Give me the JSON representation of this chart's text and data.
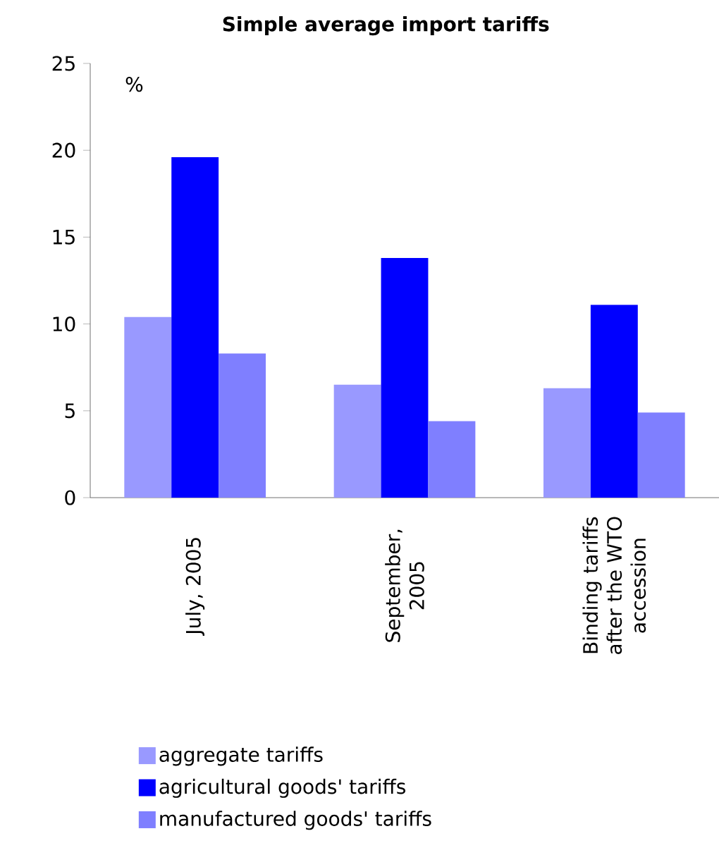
{
  "chart_data": {
    "type": "bar",
    "title": "Simple average import tariffs",
    "ylabel": "%",
    "categories": [
      "July, 2005",
      "September, 2005",
      "Binding tariffs after the WTO accession"
    ],
    "series": [
      {
        "name": "aggregate tariffs",
        "color": "#9999ff",
        "values": [
          10.4,
          6.5,
          6.3
        ]
      },
      {
        "name": "agricultural goods' tariffs",
        "color": "#0000ff",
        "values": [
          19.6,
          13.8,
          11.1
        ]
      },
      {
        "name": "manufactured goods' tariffs",
        "color": "#7f7fff",
        "values": [
          8.3,
          4.4,
          4.9
        ]
      }
    ],
    "ylim": [
      0,
      25
    ],
    "yticks": [
      0,
      5,
      10,
      15,
      20,
      25
    ],
    "grid": false,
    "legend": "bottom"
  }
}
